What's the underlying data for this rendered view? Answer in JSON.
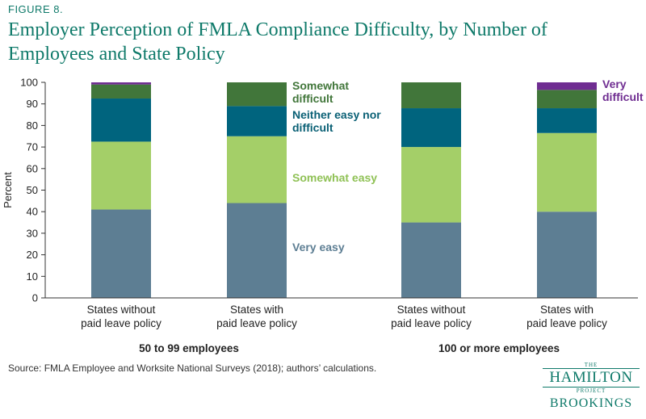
{
  "figure_label": "FIGURE 8.",
  "title_line1": "Employer Perception of FMLA Compliance Difficulty, by Number of",
  "title_line2": "Employees and State Policy",
  "source": "Source:  FMLA Employee and Worksite National Surveys (2018); authors’ calculations.",
  "logo": {
    "the": "THE",
    "hamilton": "HAMILTON",
    "project": "PROJECT",
    "brookings": "BROOKINGS"
  },
  "chart_data": {
    "type": "bar",
    "stacked": true,
    "ylabel": "Percent",
    "ylim": [
      0,
      100
    ],
    "yticks": [
      0,
      10,
      20,
      30,
      40,
      50,
      60,
      70,
      80,
      90,
      100
    ],
    "grid": false,
    "categories": [
      [
        "States without",
        "paid leave policy"
      ],
      [
        "States with",
        "paid leave policy"
      ],
      [
        "States without",
        "paid leave policy"
      ],
      [
        "States with",
        "paid leave policy"
      ]
    ],
    "groups": [
      {
        "label": "50 to 99 employees",
        "categories": [
          0,
          1
        ]
      },
      {
        "label": "100 or more employees",
        "categories": [
          2,
          3
        ]
      }
    ],
    "series": [
      {
        "name": "Very easy",
        "legend_lines": [
          "Very easy"
        ],
        "color": "#5d7e93",
        "values": [
          41,
          44,
          35,
          40
        ]
      },
      {
        "name": "Somewhat easy",
        "legend_lines": [
          "Somewhat easy"
        ],
        "color": "#a4cf68",
        "values": [
          31.5,
          31,
          35,
          36.5
        ]
      },
      {
        "name": "Neither easy nor difficult",
        "legend_lines": [
          "Neither easy nor",
          "difficult"
        ],
        "color": "#00647e",
        "values": [
          20,
          14,
          18,
          11.5
        ]
      },
      {
        "name": "Somewhat difficult",
        "legend_lines": [
          "Somewhat",
          "difficult"
        ],
        "color": "#41763a",
        "values": [
          6.5,
          11,
          12,
          8.5
        ]
      },
      {
        "name": "Very difficult",
        "legend_lines": [
          "Very",
          "difficult"
        ],
        "color": "#6f2d91",
        "values": [
          1,
          0,
          0,
          3.5
        ]
      }
    ]
  }
}
